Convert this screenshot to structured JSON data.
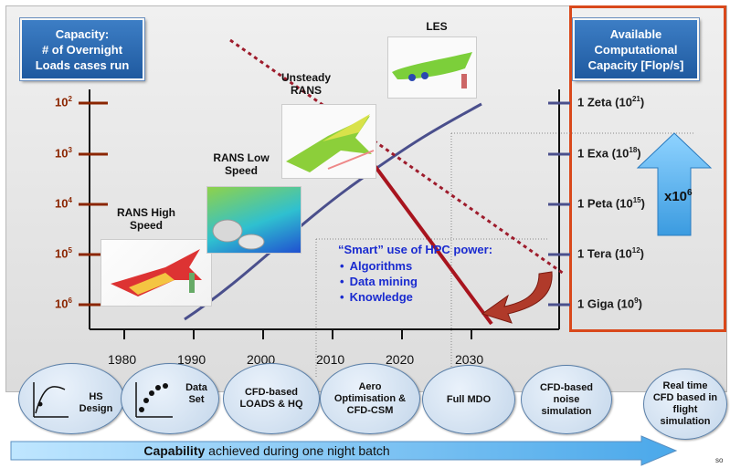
{
  "left_box": {
    "lines": [
      "Capacity:",
      "# of Overnight",
      "Loads cases run"
    ]
  },
  "right_box": {
    "lines": [
      "Available",
      "Computational",
      "Capacity [Flop/s]"
    ]
  },
  "y_left_ticks": [
    {
      "base": "10",
      "exp": "2"
    },
    {
      "base": "10",
      "exp": "3"
    },
    {
      "base": "10",
      "exp": "4"
    },
    {
      "base": "10",
      "exp": "5"
    },
    {
      "base": "10",
      "exp": "6"
    }
  ],
  "y_right_ticks": [
    {
      "label": "1 Zeta  (10",
      "exp": "21",
      "close": ")"
    },
    {
      "label": "1 Exa (10",
      "exp": "18",
      "close": ")"
    },
    {
      "label": "1 Peta (10",
      "exp": "15",
      "close": ")"
    },
    {
      "label": "1 Tera (10",
      "exp": "12",
      "close": ")"
    },
    {
      "label": "1 Giga (10",
      "exp": "9",
      "close": ")"
    }
  ],
  "x_ticks": [
    "1980",
    "1990",
    "2000",
    "2010",
    "2020",
    "2030"
  ],
  "method_labels": {
    "rans_high": "RANS High Speed",
    "rans_low": "RANS Low Speed",
    "unsteady": "Unsteady RANS",
    "les": "LES"
  },
  "smart": {
    "title": "“Smart” use of HPC power:",
    "items": [
      "Algorithms",
      "Data mining",
      "Knowledge"
    ]
  },
  "factor": {
    "base": "x10",
    "exp": "6"
  },
  "bubbles": [
    "HS Design",
    "Data Set",
    "CFD-based LOADS & HQ",
    "Aero Optimisation & CFD-CSM",
    "Full MDO",
    "CFD-based noise simulation",
    "Real time CFD based in flight simulation"
  ],
  "capability": {
    "bold": "Capability",
    "rest": " achieved during one night batch"
  },
  "source_fragment": "so",
  "colors": {
    "blue_curve": "#4a4f8c",
    "red_line": "#a8141e",
    "frame": "#d9481b",
    "arrow": "#5ab4ee"
  }
}
